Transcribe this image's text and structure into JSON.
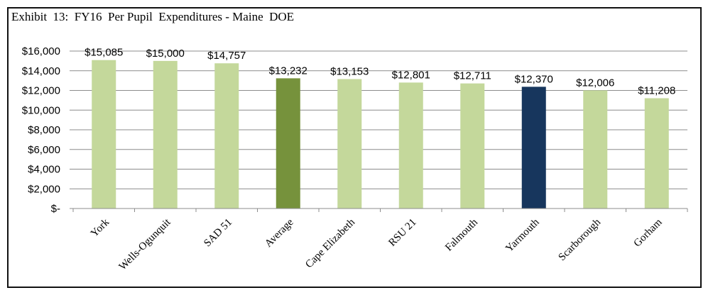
{
  "title": "Exhibit  13:  FY16  Per Pupil  Expenditures - Maine  DOE",
  "colors": {
    "default_bar": "#c4d89b",
    "average_bar": "#76923c",
    "highlight_bar": "#17365d",
    "gridline": "#8c8c8c",
    "axis": "#8c8c8c"
  },
  "chart_data": {
    "type": "bar",
    "title": "Exhibit  13:  FY16  Per Pupil  Expenditures - Maine  DOE",
    "categories": [
      "York",
      "Wells-Ogunquit",
      "SAD 51",
      "Average",
      "Cape Elizabeth",
      "RSU 21",
      "Falmouth",
      "Yarmouth",
      "Scarborough",
      "Gorham"
    ],
    "values": [
      15085,
      15000,
      14757,
      13232,
      13153,
      12801,
      12711,
      12370,
      12006,
      11208
    ],
    "data_labels": [
      "$15,085",
      "$15,000",
      "$14,757",
      "$13,232",
      "$13,153",
      "$12,801",
      "$12,711",
      "$12,370",
      "$12,006",
      "$11,208"
    ],
    "bar_styles": [
      "default",
      "default",
      "default",
      "average",
      "default",
      "default",
      "default",
      "highlight",
      "default",
      "default"
    ],
    "ylim": [
      0,
      16000
    ],
    "yticks": [
      0,
      2000,
      4000,
      6000,
      8000,
      10000,
      12000,
      14000,
      16000
    ],
    "ytick_labels": [
      "$-",
      "$2,000",
      "$4,000",
      "$6,000",
      "$8,000",
      "$10,000",
      "$12,000",
      "$14,000",
      "$16,000"
    ],
    "grid": true,
    "legend": "none"
  }
}
